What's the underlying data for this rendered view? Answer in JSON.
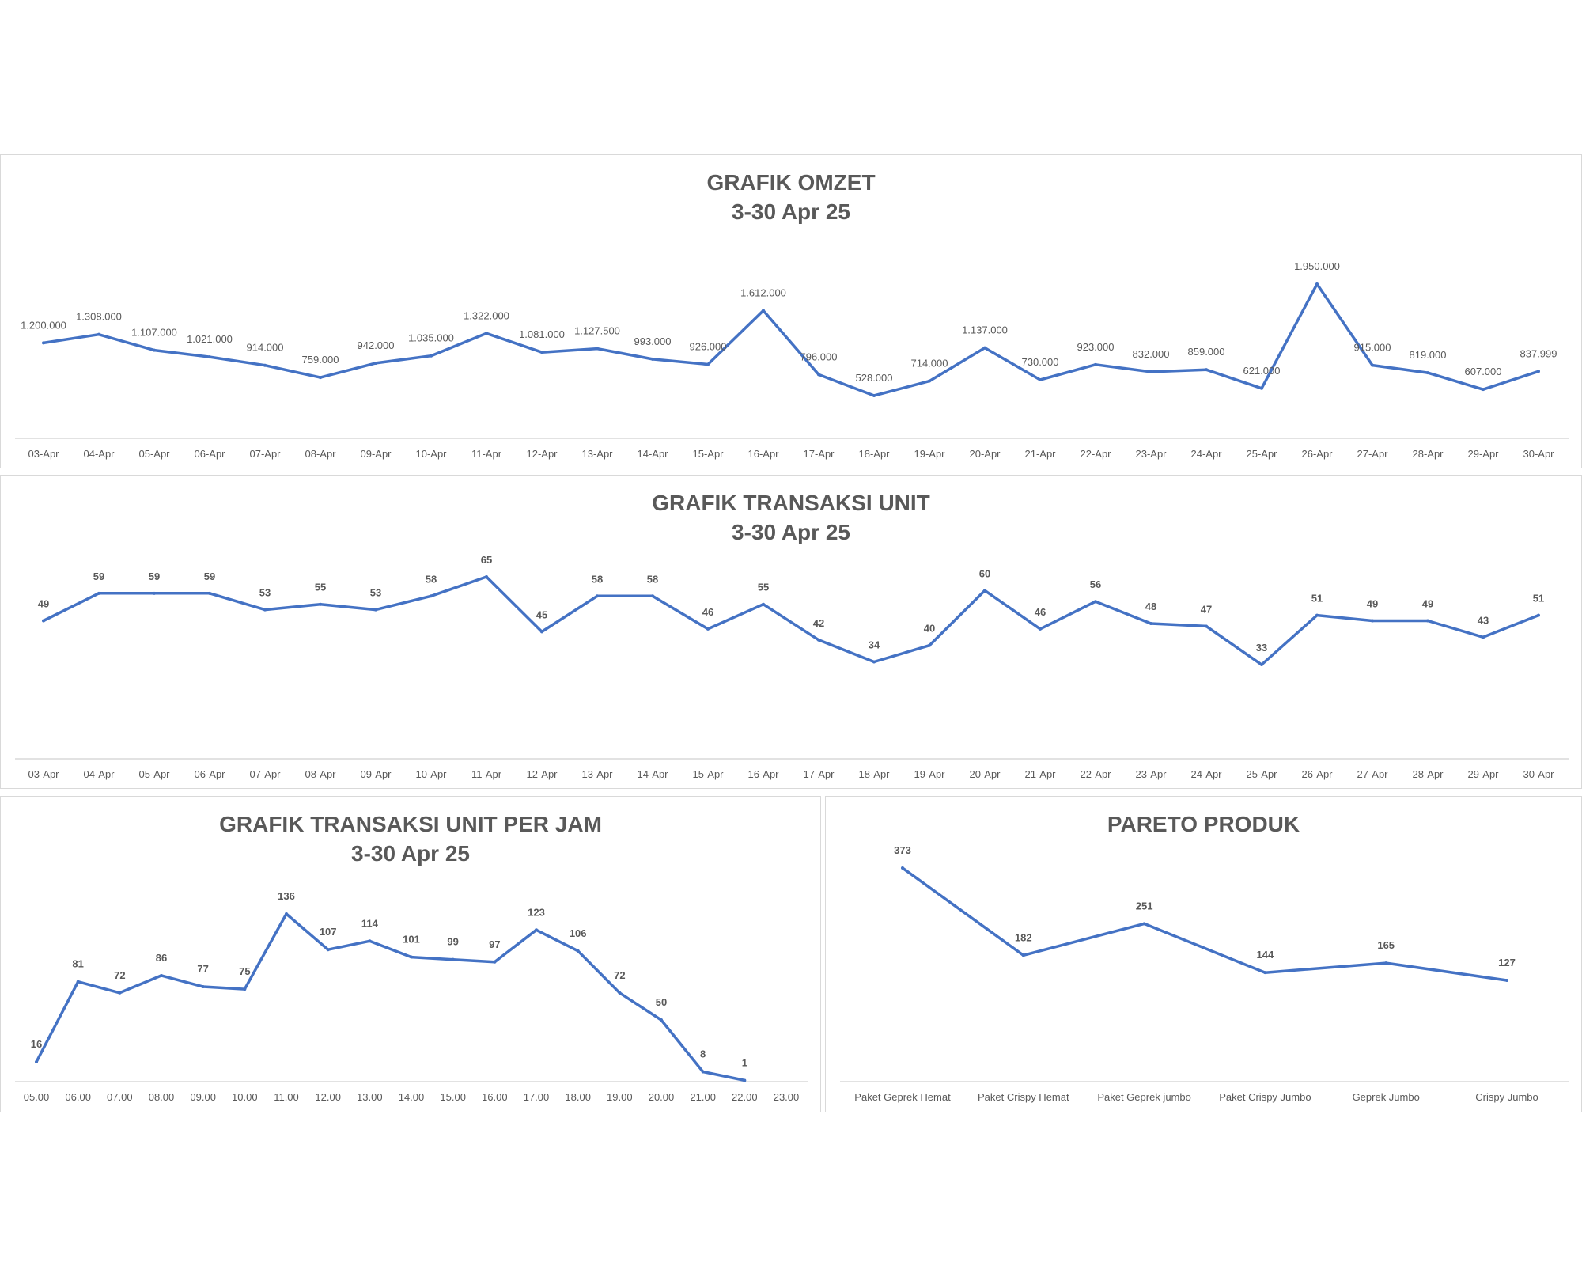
{
  "colors": {
    "line": "#4472C4",
    "axis": "#d9d9d9",
    "text": "#595959",
    "title": "#595959"
  },
  "chart_data": [
    {
      "type": "line",
      "title": "GRAFIK OMZET",
      "subtitle": "3-30 Apr 25",
      "categories": [
        "03-Apr",
        "04-Apr",
        "05-Apr",
        "06-Apr",
        "07-Apr",
        "08-Apr",
        "09-Apr",
        "10-Apr",
        "11-Apr",
        "12-Apr",
        "13-Apr",
        "14-Apr",
        "15-Apr",
        "16-Apr",
        "17-Apr",
        "18-Apr",
        "19-Apr",
        "20-Apr",
        "21-Apr",
        "22-Apr",
        "23-Apr",
        "24-Apr",
        "25-Apr",
        "26-Apr",
        "27-Apr",
        "28-Apr",
        "29-Apr",
        "30-Apr"
      ],
      "values": [
        1200000,
        1308000,
        1107000,
        1021000,
        914000,
        759000,
        942000,
        1035000,
        1322000,
        1081000,
        1127500,
        993000,
        926000,
        1612000,
        796000,
        528000,
        714000,
        1137000,
        730000,
        923000,
        832000,
        859000,
        621000,
        1950000,
        915000,
        819000,
        607000,
        837999
      ],
      "data_labels": [
        "1.200.000",
        "1.308.000",
        "1.107.000",
        "1.021.000",
        "914.000",
        "759.000",
        "942.000",
        "1.035.000",
        "1.322.000",
        "1.081.000",
        "1.127.500",
        "993.000",
        "926.000",
        "1.612.000",
        "796.000",
        "528.000",
        "714.000",
        "1.137.000",
        "730.000",
        "923.000",
        "832.000",
        "859.000",
        "621.000",
        "1.950.000",
        "915.000",
        "819.000",
        "607.000",
        "837.999"
      ],
      "grid": false,
      "legend": "none"
    },
    {
      "type": "line",
      "title": "GRAFIK TRANSAKSI UNIT",
      "subtitle": "3-30 Apr 25",
      "categories": [
        "03-Apr",
        "04-Apr",
        "05-Apr",
        "06-Apr",
        "07-Apr",
        "08-Apr",
        "09-Apr",
        "10-Apr",
        "11-Apr",
        "12-Apr",
        "13-Apr",
        "14-Apr",
        "15-Apr",
        "16-Apr",
        "17-Apr",
        "18-Apr",
        "19-Apr",
        "20-Apr",
        "21-Apr",
        "22-Apr",
        "23-Apr",
        "24-Apr",
        "25-Apr",
        "26-Apr",
        "27-Apr",
        "28-Apr",
        "29-Apr",
        "30-Apr"
      ],
      "values": [
        49,
        59,
        59,
        59,
        53,
        55,
        53,
        58,
        65,
        45,
        58,
        58,
        46,
        55,
        42,
        34,
        40,
        60,
        46,
        56,
        48,
        47,
        33,
        51,
        49,
        49,
        43,
        51
      ],
      "data_labels": [
        "49",
        "59",
        "59",
        "59",
        "53",
        "55",
        "53",
        "58",
        "65",
        "45",
        "58",
        "58",
        "46",
        "55",
        "42",
        "34",
        "40",
        "60",
        "46",
        "56",
        "48",
        "47",
        "33",
        "51",
        "49",
        "49",
        "43",
        "51"
      ],
      "grid": false,
      "legend": "none"
    },
    {
      "type": "line",
      "title": "GRAFIK TRANSAKSI UNIT PER JAM",
      "subtitle": "3-30 Apr 25",
      "categories": [
        "05.00",
        "06.00",
        "07.00",
        "08.00",
        "09.00",
        "10.00",
        "11.00",
        "12.00",
        "13.00",
        "14.00",
        "15.00",
        "16.00",
        "17.00",
        "18.00",
        "19.00",
        "20.00",
        "21.00",
        "22.00",
        "23.00"
      ],
      "values": [
        16,
        81,
        72,
        86,
        77,
        75,
        136,
        107,
        114,
        101,
        99,
        97,
        123,
        106,
        72,
        50,
        8,
        1,
        null
      ],
      "data_labels": [
        "16",
        "81",
        "72",
        "86",
        "77",
        "75",
        "136",
        "107",
        "114",
        "101",
        "99",
        "97",
        "123",
        "106",
        "72",
        "50",
        "8",
        "1",
        ""
      ],
      "grid": false,
      "legend": "none"
    },
    {
      "type": "line",
      "title": "PARETO PRODUK",
      "subtitle": "",
      "categories": [
        "Paket Geprek Hemat",
        "Paket Crispy Hemat",
        "Paket Geprek jumbo",
        "Paket Crispy Jumbo",
        "Geprek Jumbo",
        "Crispy Jumbo"
      ],
      "values": [
        373,
        182,
        251,
        144,
        165,
        127
      ],
      "data_labels": [
        "373",
        "182",
        "251",
        "144",
        "165",
        "127"
      ],
      "grid": false,
      "legend": "none"
    }
  ]
}
